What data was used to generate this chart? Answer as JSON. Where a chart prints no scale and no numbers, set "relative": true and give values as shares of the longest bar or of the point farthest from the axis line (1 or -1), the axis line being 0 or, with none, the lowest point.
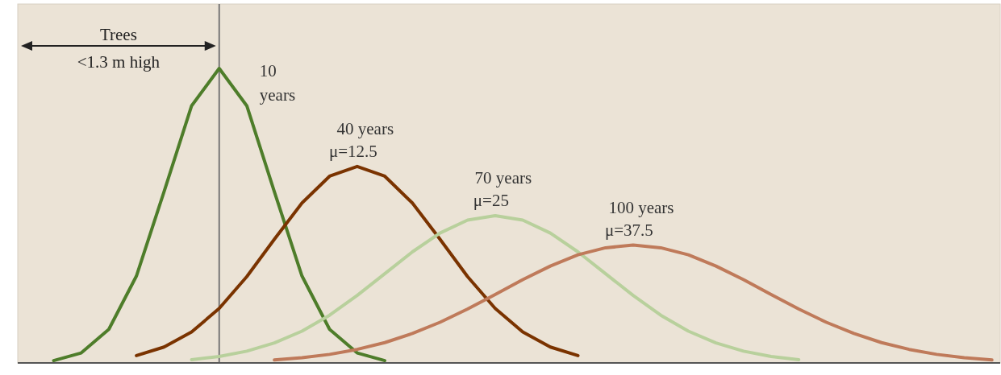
{
  "chart_data": {
    "type": "line",
    "relative": true,
    "categories": [
      null,
      null,
      null,
      null,
      null,
      null,
      null,
      null,
      null,
      null,
      null,
      null,
      null,
      null,
      null,
      null,
      null,
      null,
      null,
      null,
      null,
      null,
      null,
      null,
      null,
      null,
      null,
      null,
      null,
      null,
      null,
      null,
      null,
      null,
      null,
      null
    ],
    "line_style": "solid",
    "series": [
      {
        "name": "10 years",
        "color": "#4e7d2a",
        "values": [
          null,
          0.008,
          0.034,
          0.114,
          0.295,
          0.581,
          0.873,
          1,
          0.873,
          0.581,
          0.295,
          0.114,
          0.034,
          0.008,
          null,
          null,
          null,
          null,
          null,
          null,
          null,
          null,
          null,
          null,
          null,
          null,
          null,
          null,
          null,
          null,
          null,
          null,
          null,
          null,
          null,
          null
        ]
      },
      {
        "name": "40 years",
        "color": "#7a3300",
        "values": [
          null,
          null,
          null,
          null,
          0.025,
          0.054,
          0.105,
          0.185,
          0.293,
          0.42,
          0.543,
          0.634,
          0.667,
          0.634,
          0.543,
          0.42,
          0.293,
          0.185,
          0.105,
          0.054,
          0.025,
          null,
          null,
          null,
          null,
          null,
          null,
          null,
          null,
          null,
          null,
          null,
          null,
          null,
          null,
          null
        ]
      },
      {
        "name": "70 years",
        "color": "#b8d09c",
        "values": [
          null,
          null,
          null,
          null,
          null,
          null,
          0.011,
          0.022,
          0.04,
          0.068,
          0.108,
          0.162,
          0.229,
          0.303,
          0.377,
          0.441,
          0.485,
          0.5,
          0.485,
          0.441,
          0.377,
          0.303,
          0.229,
          0.162,
          0.108,
          0.068,
          0.04,
          0.022,
          0.011,
          null,
          null,
          null,
          null,
          null,
          null,
          null
        ]
      },
      {
        "name": "100 years",
        "color": "#bf7a5a",
        "values": [
          null,
          null,
          null,
          null,
          null,
          null,
          null,
          null,
          null,
          0.01,
          0.018,
          0.029,
          0.046,
          0.069,
          0.1,
          0.138,
          0.183,
          0.232,
          0.283,
          0.329,
          0.367,
          0.391,
          0.4,
          0.391,
          0.367,
          0.329,
          0.283,
          0.232,
          0.183,
          0.138,
          0.1,
          0.069,
          0.046,
          0.029,
          0.018,
          0.01
        ]
      }
    ],
    "annotations": [
      "Trees\n<1.3 m high",
      "μ=12.5",
      "μ=25",
      "μ=37.5"
    ]
  }
}
